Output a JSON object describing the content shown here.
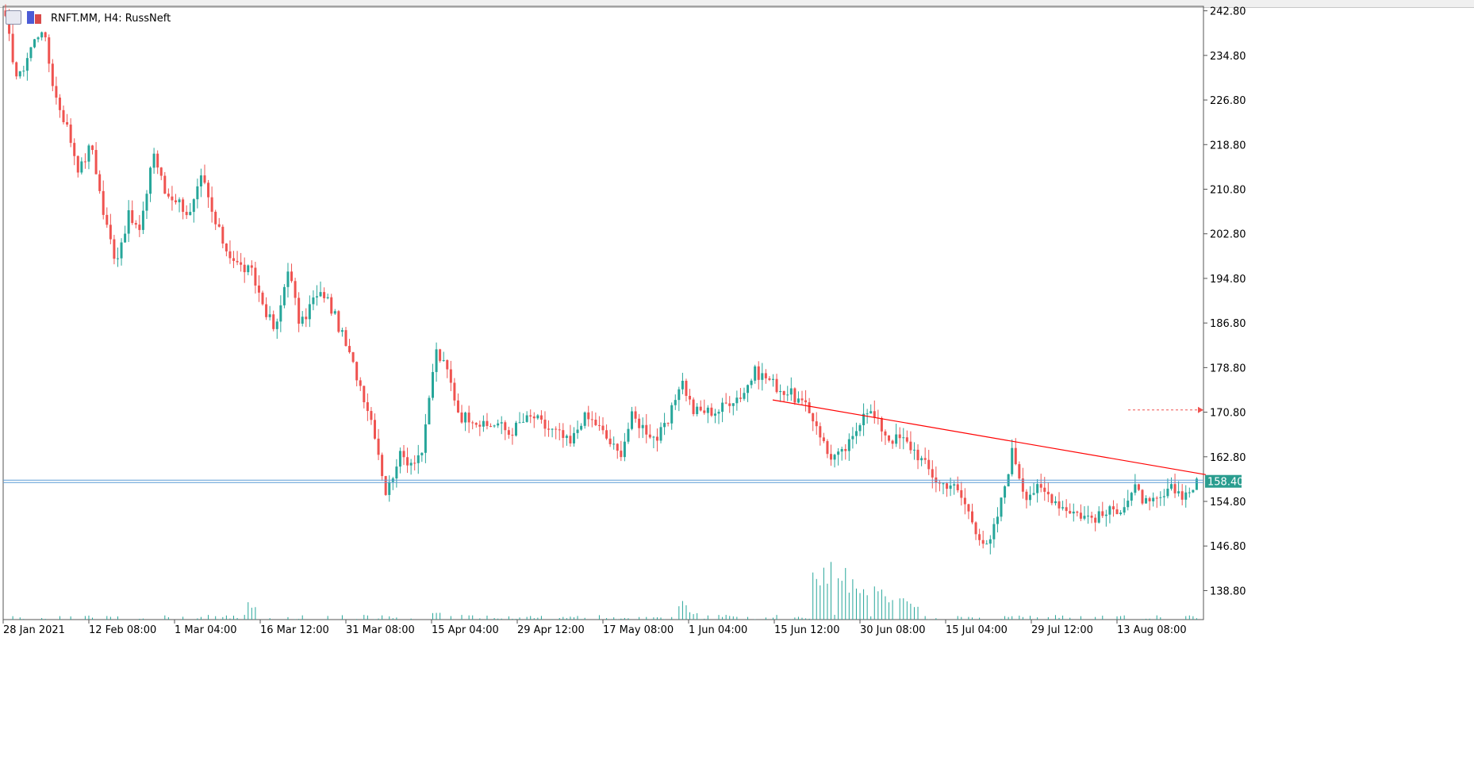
{
  "header": {
    "title": "RNFT.MM, H4:  RussNeft"
  },
  "colors": {
    "bull": "#26a69a",
    "bear": "#ef5350",
    "trendline": "#ff0000",
    "current_line": "#5b9bd5",
    "price_tag_bg": "#2a9d8f"
  },
  "chart_data": {
    "type": "candlestick",
    "symbol": "RNFT.MM",
    "timeframe": "H4",
    "ylim": [
      133.6,
      243.6
    ],
    "yticks": [
      "242.80",
      "234.80",
      "226.80",
      "218.80",
      "210.80",
      "202.80",
      "194.80",
      "186.80",
      "178.80",
      "170.80",
      "162.80",
      "154.80",
      "146.80",
      "138.80"
    ],
    "xticks": [
      "28 Jan 2021",
      "12 Feb 08:00",
      "1 Mar 04:00",
      "16 Mar 12:00",
      "31 Mar 08:00",
      "15 Apr 04:00",
      "29 Apr 12:00",
      "17 May 08:00",
      "1 Jun 04:00",
      "15 Jun 12:00",
      "30 Jun 08:00",
      "15 Jul 04:00",
      "29 Jul 12:00",
      "13 Aug 08:00"
    ],
    "current_price": "158.40",
    "grid": false,
    "price_path": [
      [
        0,
        241
      ],
      [
        1,
        230
      ],
      [
        2,
        236
      ],
      [
        3,
        240
      ],
      [
        4,
        228
      ],
      [
        5,
        222
      ],
      [
        6,
        214
      ],
      [
        7,
        219
      ],
      [
        8,
        206
      ],
      [
        9,
        198
      ],
      [
        10,
        206
      ],
      [
        11,
        203
      ],
      [
        12,
        218
      ],
      [
        13,
        210
      ],
      [
        14,
        209
      ],
      [
        15,
        206
      ],
      [
        16,
        213
      ],
      [
        17,
        205
      ],
      [
        18,
        200
      ],
      [
        19,
        197
      ],
      [
        20,
        196
      ],
      [
        21,
        190
      ],
      [
        22,
        185
      ],
      [
        23,
        197
      ],
      [
        24,
        186
      ],
      [
        25,
        191
      ],
      [
        26,
        192
      ],
      [
        27,
        187
      ],
      [
        28,
        181
      ],
      [
        29,
        175
      ],
      [
        30,
        168
      ],
      [
        31,
        156
      ],
      [
        32,
        163
      ],
      [
        33,
        162
      ],
      [
        34,
        164
      ],
      [
        35,
        182
      ],
      [
        36,
        178
      ],
      [
        37,
        170
      ],
      [
        38,
        170
      ],
      [
        39,
        168
      ],
      [
        40,
        169
      ],
      [
        41,
        167
      ],
      [
        42,
        169
      ],
      [
        43,
        170
      ],
      [
        44,
        168
      ],
      [
        45,
        167
      ],
      [
        46,
        165
      ],
      [
        47,
        170
      ],
      [
        48,
        169
      ],
      [
        49,
        166
      ],
      [
        50,
        163
      ],
      [
        51,
        170
      ],
      [
        52,
        168
      ],
      [
        53,
        166
      ],
      [
        54,
        169
      ],
      [
        55,
        177
      ],
      [
        56,
        171
      ],
      [
        57,
        171
      ],
      [
        58,
        171
      ],
      [
        59,
        173
      ],
      [
        60,
        174
      ],
      [
        61,
        178
      ],
      [
        62,
        177
      ],
      [
        63,
        175
      ],
      [
        64,
        174
      ],
      [
        65,
        172
      ],
      [
        66,
        169
      ],
      [
        67,
        163
      ],
      [
        68,
        163
      ],
      [
        69,
        166
      ],
      [
        70,
        172
      ],
      [
        71,
        169
      ],
      [
        72,
        166
      ],
      [
        73,
        166
      ],
      [
        74,
        164
      ],
      [
        75,
        161
      ],
      [
        76,
        158
      ],
      [
        77,
        158
      ],
      [
        78,
        155
      ],
      [
        79,
        150
      ],
      [
        80,
        146
      ],
      [
        81,
        154
      ],
      [
        82,
        164
      ],
      [
        83,
        156
      ],
      [
        84,
        157
      ],
      [
        85,
        156
      ],
      [
        86,
        154
      ],
      [
        87,
        153
      ],
      [
        88,
        152
      ],
      [
        89,
        152
      ],
      [
        90,
        153
      ],
      [
        91,
        154
      ],
      [
        92,
        157
      ],
      [
        93,
        154
      ],
      [
        94,
        155
      ],
      [
        95,
        157
      ],
      [
        96,
        156
      ],
      [
        97,
        158
      ]
    ],
    "volume_spikes": [
      [
        55,
        0.35
      ],
      [
        56,
        0.15
      ],
      [
        66,
        0.95
      ],
      [
        67,
        1.0
      ],
      [
        68,
        0.9
      ],
      [
        69,
        0.7
      ],
      [
        70,
        0.55
      ],
      [
        71,
        0.6
      ],
      [
        72,
        0.45
      ],
      [
        73,
        0.4
      ],
      [
        74,
        0.3
      ],
      [
        20,
        0.3
      ],
      [
        35,
        0.15
      ],
      [
        99,
        0.15
      ]
    ],
    "trendline": {
      "from": [
        974,
        173.0
      ],
      "to": [
        1520,
        159.6
      ]
    },
    "horizontal_level": 158.4,
    "alert_arrow_price": 171.2
  }
}
